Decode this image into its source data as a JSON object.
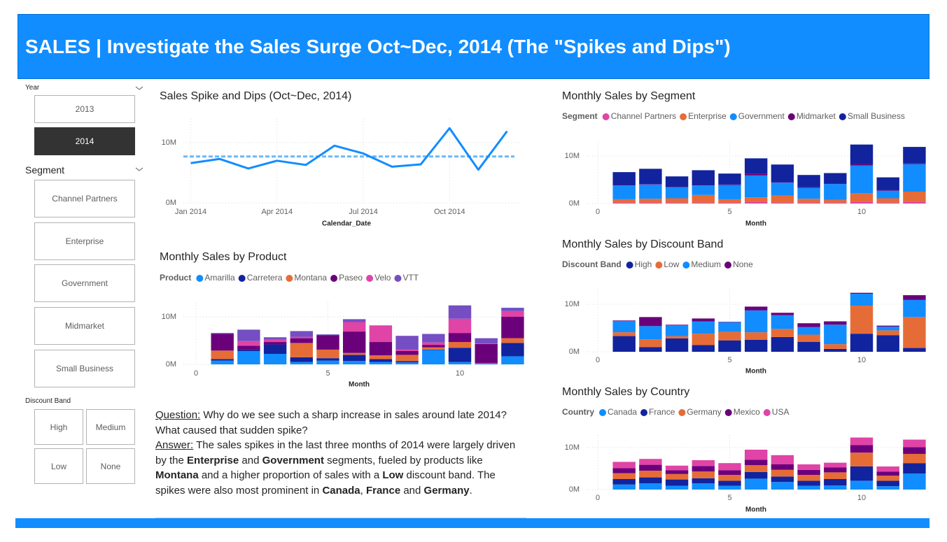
{
  "header": {
    "title": "SALES | Investigate the Sales Surge Oct~Dec, 2014 (The \"Spikes and Dips\")"
  },
  "slicers": [
    {
      "title": "Year",
      "options": [
        "2013",
        "2014"
      ],
      "selected": 1
    },
    {
      "title": "Segment",
      "options": [
        "Channel Partners",
        "Enterprise",
        "Government",
        "Midmarket",
        "Small Business"
      ]
    },
    {
      "title": "Discount Band",
      "options": [
        "High",
        "Medium",
        "Low",
        "None"
      ]
    }
  ],
  "text_panel": {
    "question_label": "Question:",
    "question": " Why do we see such a sharp increase in sales around late 2014? What caused that sudden spike?",
    "answer_label": "Answer:",
    "answer": [
      {
        "text": " The sales spikes in the last three months of 2014 were largely driven by the "
      },
      {
        "text": "Enterprise",
        "bold": true
      },
      {
        "text": " and "
      },
      {
        "text": "Government",
        "bold": true
      },
      {
        "text": " segments, fueled by products like "
      },
      {
        "text": "Montana",
        "bold": true
      },
      {
        "text": " and a higher proportion of sales with a "
      },
      {
        "text": "Low",
        "bold": true
      },
      {
        "text": " discount band. The spikes were also most prominent in "
      },
      {
        "text": "Canada",
        "bold": true
      },
      {
        "text": ", "
      },
      {
        "text": "France",
        "bold": true
      },
      {
        "text": " and "
      },
      {
        "text": "Germany",
        "bold": true
      },
      {
        "text": "."
      }
    ]
  },
  "chart_data": [
    {
      "type": "line",
      "title": "Sales Spike and Dips (Oct~Dec, 2014)",
      "x_label": "Calendar_Date",
      "categories": [
        "Jan 2014",
        null,
        null,
        "Apr 2014",
        null,
        null,
        "Jul 2014",
        null,
        null,
        "Oct 2014",
        null,
        null
      ],
      "values": [
        6.6,
        7.3,
        5.7,
        7.0,
        6.3,
        9.5,
        8.2,
        6.0,
        6.4,
        12.4,
        5.5,
        11.9
      ],
      "color": "#118dff",
      "reference_line": 7.7,
      "reference_color": "#6cb8f6",
      "ylim": [
        0,
        14
      ],
      "yticks": [
        {
          "value": 0,
          "label": "0M"
        },
        {
          "value": 10,
          "label": "10M"
        }
      ],
      "grid": true
    },
    {
      "type": "bar",
      "stacked": true,
      "title": "Monthly Sales by Product",
      "legend_title": "Product",
      "x_label": "Month",
      "x": [
        1,
        2,
        3,
        4,
        5,
        6,
        7,
        8,
        9,
        10,
        11,
        12
      ],
      "series": [
        {
          "name": "Amarilla",
          "color": "#118dff",
          "values": [
            0.8,
            2.8,
            2.2,
            0.5,
            0.8,
            0.7,
            0.5,
            0.4,
            3.0,
            0.5,
            0.1,
            1.7
          ]
        },
        {
          "name": "Carretera",
          "color": "#12239e",
          "values": [
            0.3,
            0.3,
            2.0,
            1.0,
            0.5,
            1.3,
            0.6,
            0.3,
            0.1,
            3.0,
            0.1,
            2.8
          ]
        },
        {
          "name": "Montana",
          "color": "#e66c37",
          "values": [
            1.8,
            0,
            0,
            3.0,
            1.8,
            0.4,
            0.8,
            1.3,
            0.5,
            1.2,
            0.1,
            1.0
          ]
        },
        {
          "name": "Paseo",
          "color": "#6b007b",
          "values": [
            3.5,
            0.8,
            0.5,
            1.0,
            3.0,
            4.5,
            2.8,
            0.8,
            0.5,
            1.9,
            4.0,
            4.5
          ]
        },
        {
          "name": "Velo",
          "color": "#e044a7",
          "values": [
            0,
            1.0,
            0.5,
            0.3,
            0,
            2.0,
            3.5,
            0.3,
            0.5,
            3.0,
            0.1,
            1.2
          ]
        },
        {
          "name": "VTT",
          "color": "#744ec2",
          "values": [
            0.2,
            2.4,
            0.5,
            1.2,
            0.2,
            0.6,
            0,
            2.9,
            1.8,
            2.8,
            1.1,
            0.7
          ]
        }
      ],
      "xlim": [
        0,
        12.4
      ],
      "xticks": [
        0,
        5,
        10
      ],
      "ylim": [
        0,
        13
      ],
      "yticks": [
        {
          "value": 0,
          "label": "0M"
        },
        {
          "value": 10,
          "label": "10M"
        }
      ],
      "grid": true
    },
    {
      "type": "bar",
      "stacked": true,
      "title": "Monthly Sales by Segment",
      "legend_title": "Segment",
      "x_label": "Month",
      "x": [
        1,
        2,
        3,
        4,
        5,
        6,
        7,
        8,
        9,
        10,
        11,
        12
      ],
      "series": [
        {
          "name": "Channel Partners",
          "color": "#e044a7",
          "values": [
            0.2,
            0.2,
            0.2,
            0.2,
            0.2,
            0.3,
            0.2,
            0.2,
            0.2,
            0.3,
            0.2,
            0.3
          ]
        },
        {
          "name": "Enterprise",
          "color": "#e66c37",
          "values": [
            0.7,
            0.8,
            0.9,
            1.6,
            0.7,
            1.0,
            1.5,
            0.8,
            0.6,
            1.9,
            0.9,
            2.2
          ]
        },
        {
          "name": "Government",
          "color": "#118dff",
          "values": [
            2.9,
            3.0,
            2.3,
            2.0,
            3.0,
            4.6,
            2.7,
            2.3,
            3.3,
            5.8,
            1.6,
            5.8
          ]
        },
        {
          "name": "Midmarket",
          "color": "#6b007b",
          "values": [
            0.1,
            0.1,
            0.1,
            0.1,
            0.1,
            0.4,
            0.1,
            0.1,
            0.1,
            0.3,
            0.1,
            0.1
          ]
        },
        {
          "name": "Small Business",
          "color": "#12239e",
          "values": [
            2.7,
            3.2,
            2.2,
            3.1,
            2.3,
            3.2,
            3.7,
            2.6,
            2.2,
            4.1,
            2.7,
            3.5
          ]
        }
      ],
      "xlim": [
        0,
        12.4
      ],
      "xticks": [
        0,
        5,
        10
      ],
      "ylim": [
        0,
        13
      ],
      "yticks": [
        {
          "value": 0,
          "label": "0M"
        },
        {
          "value": 10,
          "label": "10M"
        }
      ],
      "grid": true
    },
    {
      "type": "bar",
      "stacked": true,
      "title": "Monthly Sales by Discount Band",
      "legend_title": "Discount Band",
      "x_label": "Month",
      "x": [
        1,
        2,
        3,
        4,
        5,
        6,
        7,
        8,
        9,
        10,
        11,
        12
      ],
      "series": [
        {
          "name": "High",
          "color": "#12239e",
          "values": [
            3.3,
            1.0,
            2.8,
            1.4,
            2.4,
            2.5,
            3.1,
            2.1,
            0.6,
            3.8,
            3.5,
            0.8
          ]
        },
        {
          "name": "Low",
          "color": "#e66c37",
          "values": [
            0.8,
            1.6,
            0.5,
            2.4,
            1.8,
            1.6,
            1.7,
            1.5,
            1.0,
            5.9,
            1.0,
            6.5
          ]
        },
        {
          "name": "Medium",
          "color": "#118dff",
          "values": [
            2.4,
            2.8,
            2.3,
            2.6,
            2.0,
            4.6,
            2.9,
            1.6,
            4.1,
            2.5,
            0.8,
            3.6
          ]
        },
        {
          "name": "None",
          "color": "#6b007b",
          "values": [
            0.1,
            1.9,
            0.1,
            0.6,
            0.1,
            0.8,
            0.5,
            0.8,
            0.7,
            0.2,
            0.2,
            1.0
          ]
        }
      ],
      "xlim": [
        0,
        12.4
      ],
      "xticks": [
        0,
        5,
        10
      ],
      "ylim": [
        0,
        13
      ],
      "yticks": [
        {
          "value": 0,
          "label": "0M"
        },
        {
          "value": 10,
          "label": "10M"
        }
      ],
      "grid": true
    },
    {
      "type": "bar",
      "stacked": true,
      "title": "Monthly Sales by Country",
      "legend_title": "Country",
      "x_label": "Month",
      "x": [
        1,
        2,
        3,
        4,
        5,
        6,
        7,
        8,
        9,
        10,
        11,
        12
      ],
      "series": [
        {
          "name": "Canada",
          "color": "#118dff",
          "values": [
            1.2,
            1.5,
            0.9,
            1.5,
            0.9,
            2.6,
            1.8,
            0.9,
            1.0,
            2.1,
            0.8,
            3.8
          ]
        },
        {
          "name": "France",
          "color": "#12239e",
          "values": [
            1.3,
            1.4,
            1.5,
            1.2,
            1.2,
            1.6,
            1.3,
            1.2,
            1.5,
            3.4,
            1.3,
            2.5
          ]
        },
        {
          "name": "Germany",
          "color": "#e66c37",
          "values": [
            1.4,
            1.6,
            1.3,
            1.6,
            1.4,
            1.6,
            1.6,
            1.4,
            1.6,
            3.3,
            1.2,
            2.2
          ]
        },
        {
          "name": "Mexico",
          "color": "#6b007b",
          "values": [
            1.2,
            1.4,
            0.9,
            1.3,
            1.1,
            1.3,
            1.3,
            1.2,
            1.2,
            1.8,
            1.0,
            1.6
          ]
        },
        {
          "name": "USA",
          "color": "#e044a7",
          "values": [
            1.5,
            1.4,
            1.1,
            1.4,
            1.7,
            2.4,
            2.2,
            1.3,
            1.1,
            1.8,
            1.2,
            1.8
          ]
        }
      ],
      "xlim": [
        0,
        12.4
      ],
      "xticks": [
        0,
        5,
        10
      ],
      "ylim": [
        0,
        13
      ],
      "yticks": [
        {
          "value": 0,
          "label": "0M"
        },
        {
          "value": 10,
          "label": "10M"
        }
      ],
      "grid": true
    }
  ]
}
